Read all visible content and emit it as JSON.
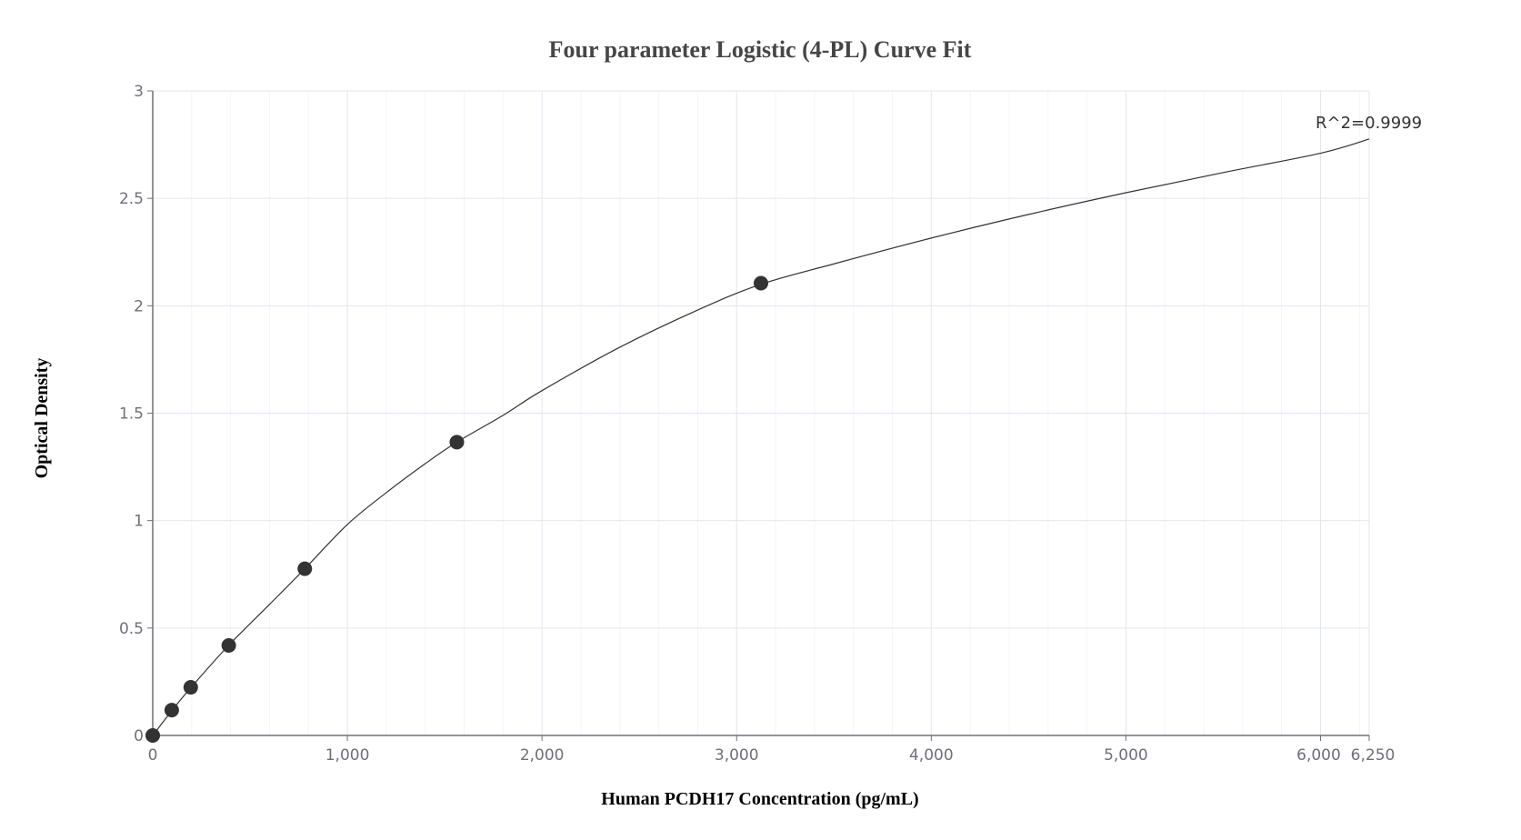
{
  "chart_data": {
    "type": "scatter",
    "title": "Four parameter Logistic (4-PL) Curve Fit",
    "xlabel": "Human PCDH17 Concentration (pg/mL)",
    "ylabel": "Optical Density",
    "xlim": [
      0,
      6250
    ],
    "ylim": [
      0,
      3
    ],
    "x_ticks": [
      0,
      1000,
      2000,
      3000,
      4000,
      5000,
      6000,
      6250
    ],
    "x_tick_labels": [
      "0",
      "1,000",
      "2,000",
      "3,000",
      "4,000",
      "5,000",
      "6,000",
      "6,250"
    ],
    "y_ticks": [
      0,
      0.5,
      1,
      1.5,
      2,
      2.5,
      3
    ],
    "y_tick_labels": [
      "0",
      "0.5",
      "1",
      "1.5",
      "2",
      "2.5",
      "3"
    ],
    "x_minor_step": 200,
    "grid": true,
    "legend": "none",
    "annotation": "R^2=0.9999",
    "series": [
      {
        "name": "Standards",
        "kind": "scatter",
        "color": "#333333",
        "x": [
          0,
          97.66,
          195.31,
          390.63,
          781.25,
          1562.5,
          3125
        ],
        "y": [
          0.0,
          0.118,
          0.224,
          0.419,
          0.776,
          1.365,
          2.105
        ]
      },
      {
        "name": "4-PL fit",
        "kind": "line",
        "color": "#333333",
        "x": [
          0,
          97.66,
          195.31,
          390.63,
          600,
          781.25,
          1000,
          1200,
          1400,
          1562.5,
          1800,
          2000,
          2400,
          2800,
          3125,
          3500,
          4000,
          4500,
          5000,
          5500,
          6000,
          6250
        ],
        "y": [
          0,
          0.115,
          0.222,
          0.42,
          0.61,
          0.776,
          0.982,
          1.13,
          1.265,
          1.365,
          1.49,
          1.605,
          1.807,
          1.98,
          2.1,
          2.195,
          2.315,
          2.425,
          2.526,
          2.62,
          2.71,
          2.776
        ]
      }
    ]
  },
  "colors": {
    "grid_major": "#e0e6f1",
    "grid_minor": "#f3f5fa",
    "axis": "#6e7079",
    "point": "#333333",
    "curve": "#333333",
    "title": "#464646"
  }
}
